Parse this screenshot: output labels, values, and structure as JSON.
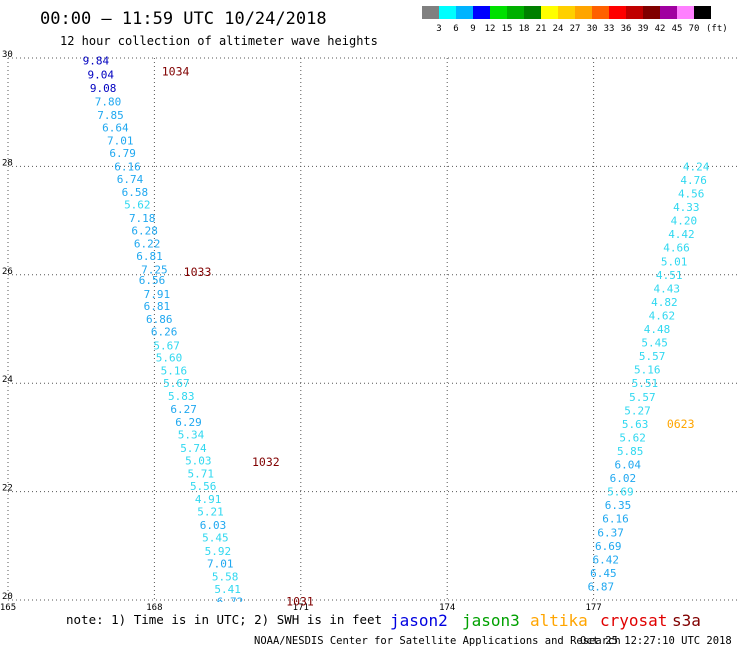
{
  "header": {
    "title": "00:00 – 11:59 UTC 10/24/2018",
    "subtitle": "12 hour collection of altimeter wave heights"
  },
  "colorbar": {
    "labels": [
      "3",
      "6",
      "9",
      "12",
      "15",
      "18",
      "21",
      "24",
      "27",
      "30",
      "33",
      "36",
      "39",
      "42",
      "45",
      "70"
    ],
    "unit": "(ft)",
    "colors": [
      "#808080",
      "#00ffff",
      "#00b4ff",
      "#0000ff",
      "#00e000",
      "#00b000",
      "#008000",
      "#ffff00",
      "#ffd000",
      "#ffa500",
      "#ff6000",
      "#ff0000",
      "#c00000",
      "#800000",
      "#a000a0",
      "#ff80ff",
      "#000000"
    ]
  },
  "footer": {
    "note": "note: 1) Time is in UTC; 2) SWH is in feet",
    "credit": "NOAA/NESDIS Center for Satellite Applications and Research",
    "timestamp": "Oct 25 12:27:10 UTC 2018",
    "satellites": [
      {
        "name": "jason2",
        "color": "#0000e0"
      },
      {
        "name": "jason3",
        "color": "#00a000"
      },
      {
        "name": "altika",
        "color": "#ffa500"
      },
      {
        "name": "cryosat",
        "color": "#e00000"
      },
      {
        "name": "s3a",
        "color": "#800000"
      }
    ]
  },
  "chart_data": {
    "type": "scatter",
    "xlim": [
      165,
      180
    ],
    "ylim": [
      20,
      30
    ],
    "x_ticks": [
      "165",
      "168",
      "171",
      "174",
      "177"
    ],
    "y_ticks": [
      "20",
      "22",
      "24",
      "26",
      "28",
      "30"
    ],
    "grid": true,
    "track1": {
      "color": "#40d0ff",
      "values": [
        9.84,
        9.04,
        9.08,
        7.8,
        7.85,
        6.64,
        7.01,
        6.79,
        6.16,
        6.74,
        6.58,
        5.62,
        7.18,
        6.28,
        6.22,
        6.81,
        7.25,
        6.56,
        7.91,
        6.81,
        6.86,
        6.26,
        5.67,
        5.6,
        5.16,
        5.67,
        5.83,
        6.27,
        6.29,
        5.34,
        5.74,
        5.03,
        5.71,
        5.56,
        4.91,
        5.21,
        6.03,
        5.45,
        5.92,
        7.01,
        5.58,
        5.41,
        6.72
      ],
      "x": [
        166.8,
        166.9,
        166.95,
        167.05,
        167.1,
        167.2,
        167.3,
        167.35,
        167.45,
        167.5,
        167.6,
        167.65,
        167.75,
        167.8,
        167.85,
        167.9,
        168.0,
        167.95,
        168.05,
        168.05,
        168.1,
        168.2,
        168.25,
        168.3,
        168.4,
        168.45,
        168.55,
        168.6,
        168.7,
        168.75,
        168.8,
        168.9,
        168.95,
        169.0,
        169.1,
        169.15,
        169.2,
        169.25,
        169.3,
        169.35,
        169.45,
        169.5,
        169.55
      ],
      "y": [
        29.95,
        29.7,
        29.45,
        29.2,
        28.95,
        28.72,
        28.48,
        28.25,
        28.0,
        27.77,
        27.53,
        27.3,
        27.05,
        26.82,
        26.58,
        26.35,
        26.1,
        25.9,
        25.65,
        25.42,
        25.18,
        24.95,
        24.7,
        24.47,
        24.23,
        24.0,
        23.76,
        23.52,
        23.28,
        23.05,
        22.8,
        22.57,
        22.33,
        22.1,
        21.86,
        21.63,
        21.38,
        21.15,
        20.9,
        20.67,
        20.43,
        20.2,
        19.97
      ],
      "passes": [
        {
          "label": "1034",
          "x": 168.15,
          "y": 29.75
        },
        {
          "label": "1033",
          "x": 168.6,
          "y": 26.05
        },
        {
          "label": "1032",
          "x": 170.0,
          "y": 22.55
        },
        {
          "label": "1031",
          "x": 170.7,
          "y": 19.97
        }
      ]
    },
    "track2": {
      "color": "#40d0ff",
      "values": [
        6.87,
        6.45,
        6.42,
        6.69,
        6.37,
        6.16,
        6.35,
        5.69,
        6.02,
        6.04,
        5.85,
        5.62,
        5.63,
        5.27,
        5.57,
        5.51,
        5.16,
        5.57,
        5.45,
        4.48,
        4.62,
        4.82,
        4.43,
        4.51,
        5.01,
        4.66,
        4.42,
        4.2,
        4.33,
        4.56,
        4.76,
        4.24
      ],
      "x": [
        177.15,
        177.2,
        177.25,
        177.3,
        177.35,
        177.45,
        177.5,
        177.55,
        177.6,
        177.7,
        177.75,
        177.8,
        177.85,
        177.9,
        178.0,
        178.05,
        178.1,
        178.2,
        178.25,
        178.3,
        178.4,
        178.45,
        178.5,
        178.55,
        178.65,
        178.7,
        178.8,
        178.85,
        178.9,
        179.0,
        179.05,
        179.1
      ],
      "y": [
        20.25,
        20.5,
        20.75,
        21.0,
        21.25,
        21.5,
        21.75,
        22.0,
        22.25,
        22.5,
        22.75,
        23.0,
        23.25,
        23.5,
        23.75,
        24.0,
        24.25,
        24.5,
        24.75,
        25.0,
        25.25,
        25.5,
        25.75,
        26.0,
        26.25,
        26.5,
        26.75,
        27.0,
        27.25,
        27.5,
        27.75,
        28.0
      ],
      "passes": [
        {
          "label": "0623",
          "x": 178.05,
          "y": 23.25
        }
      ]
    }
  }
}
